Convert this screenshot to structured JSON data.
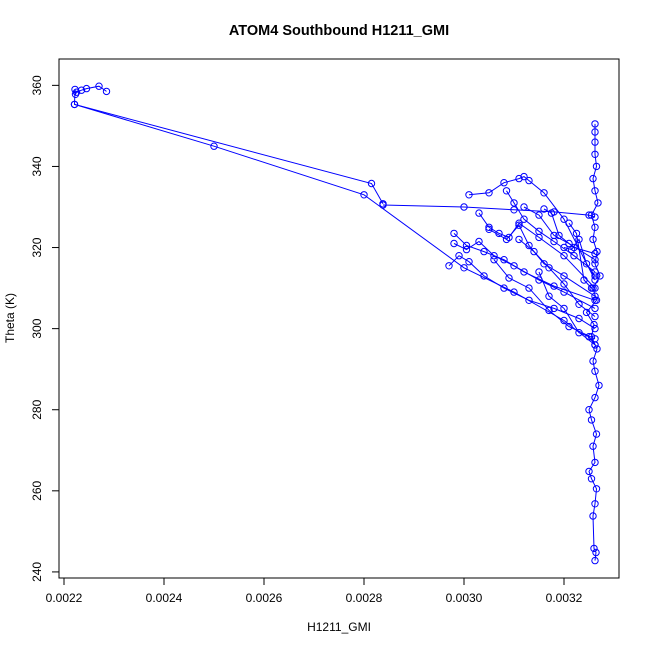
{
  "chart_data": {
    "type": "line",
    "title": "ATOM4 Southbound H1211_GMI",
    "xlabel": "H1211_GMI",
    "ylabel": "Theta (K)",
    "xlim": [
      0.00219,
      0.00331
    ],
    "ylim": [
      238.5,
      366.5
    ],
    "x_ticks": [
      0.0022,
      0.0024,
      0.0026,
      0.0028,
      0.003,
      0.0032
    ],
    "x_tick_labels": [
      "0.0022",
      "0.0024",
      "0.0026",
      "0.0028",
      "0.0030",
      "0.0032"
    ],
    "y_ticks": [
      240,
      260,
      280,
      300,
      320,
      340,
      360
    ],
    "y_tick_labels": [
      "240",
      "260",
      "280",
      "300",
      "320",
      "340",
      "360"
    ],
    "grid": false,
    "legend": "none",
    "markers": "open-circle",
    "colors": {
      "series": "#0000ff",
      "axis": "#000000",
      "background": "#ffffff"
    },
    "series": [
      {
        "x": [
          0.002285,
          0.00227,
          0.002245,
          0.002235,
          0.002225,
          0.002223,
          0.002222,
          0.002221,
          0.002815,
          0.002838
        ],
        "y": [
          358.5,
          359.8,
          359.2,
          358.8,
          358.3,
          357.8,
          359.0,
          355.3,
          335.8,
          330.8
        ]
      },
      {
        "x": [
          0.003262,
          0.003264,
          0.00326,
          0.003258,
          0.003262,
          0.003265,
          0.003255,
          0.00325,
          0.003262,
          0.003258,
          0.003265,
          0.003255,
          0.00325,
          0.003262,
          0.00327,
          0.003262,
          0.003258,
          0.003266,
          0.003255,
          0.00326,
          0.003245,
          0.003265,
          0.003258,
          0.003272,
          0.003262,
          0.003266,
          0.003258,
          0.003262,
          0.003255,
          0.003268,
          0.003262,
          0.003258,
          0.003265,
          0.003262,
          0.003262,
          0.003262,
          0.003262
        ],
        "y": [
          242.8,
          244.8,
          245.8,
          253.8,
          256.8,
          260.5,
          263.0,
          264.8,
          267.0,
          271.0,
          274.0,
          277.5,
          280.0,
          283.0,
          286.0,
          289.5,
          292.0,
          295.0,
          298.0,
          301.0,
          304.0,
          307.0,
          310.0,
          313.0,
          316.0,
          319.0,
          322.0,
          325.0,
          328.0,
          331.0,
          334.0,
          337.0,
          340.0,
          343.0,
          346.0,
          348.5,
          350.5
        ]
      },
      {
        "x": [
          0.002838,
          0.003,
          0.0031,
          0.00318,
          0.00325,
          0.003262
        ],
        "y": [
          330.5,
          330.0,
          329.3,
          328.8,
          328.0,
          327.5
        ]
      },
      {
        "x": [
          0.002221,
          0.0025,
          0.0028,
          0.003,
          0.0031,
          0.0032,
          0.003262
        ],
        "y": [
          355.3,
          345.0,
          333.0,
          315.0,
          309.0,
          302.0,
          296.0
        ]
      },
      {
        "x": [
          0.00297,
          0.00299,
          0.00301,
          0.00304,
          0.00308,
          0.00313,
          0.00318,
          0.00323,
          0.003262
        ],
        "y": [
          315.5,
          318.0,
          316.5,
          313.0,
          310.0,
          307.0,
          305.0,
          302.5,
          300.0
        ]
      },
      {
        "x": [
          0.00298,
          0.003005,
          0.00303,
          0.00306,
          0.0031,
          0.00315,
          0.0032,
          0.003262
        ],
        "y": [
          321.0,
          319.5,
          321.5,
          318.0,
          315.5,
          312.0,
          309.0,
          305.0
        ]
      },
      {
        "x": [
          0.00298,
          0.003005,
          0.00304,
          0.00308,
          0.00312,
          0.00318,
          0.003262
        ],
        "y": [
          323.5,
          320.5,
          319.0,
          317.0,
          314.0,
          310.5,
          307.0
        ]
      },
      {
        "x": [
          0.00301,
          0.00305,
          0.00308,
          0.00311,
          0.00312,
          0.00313,
          0.00316,
          0.0032,
          0.003262
        ],
        "y": [
          333.0,
          333.5,
          336.0,
          337.0,
          337.5,
          336.5,
          333.5,
          327.0,
          312.0
        ]
      },
      {
        "x": [
          0.00303,
          0.00305,
          0.00307,
          0.00309,
          0.00311,
          0.00315,
          0.0032,
          0.003262
        ],
        "y": [
          328.5,
          325.0,
          323.5,
          322.5,
          326.0,
          322.5,
          318.0,
          310.0
        ]
      },
      {
        "x": [
          0.003085,
          0.0031,
          0.00312,
          0.00315,
          0.00318,
          0.00322,
          0.003262
        ],
        "y": [
          334.0,
          331.0,
          327.0,
          324.0,
          321.5,
          318.0,
          314.0
        ]
      },
      {
        "x": [
          0.00305,
          0.003085,
          0.00311,
          0.00313,
          0.00316,
          0.0032,
          0.003262
        ],
        "y": [
          324.5,
          322.0,
          325.5,
          320.5,
          316.0,
          313.0,
          308.0
        ]
      },
      {
        "x": [
          0.00312,
          0.00315,
          0.00318,
          0.00321,
          0.003262
        ],
        "y": [
          330.0,
          328.0,
          323.0,
          321.0,
          317.0
        ]
      },
      {
        "x": [
          0.00316,
          0.003175,
          0.00319,
          0.00322,
          0.003262
        ],
        "y": [
          329.5,
          328.5,
          323.0,
          320.0,
          318.5
        ]
      },
      {
        "x": [
          0.0032,
          0.003215,
          0.00323,
          0.003245,
          0.003262
        ],
        "y": [
          320.0,
          319.5,
          322.0,
          316.0,
          313.0
        ]
      },
      {
        "x": [
          0.00311,
          0.00314,
          0.00317,
          0.0032,
          0.00323,
          0.003262
        ],
        "y": [
          322.0,
          319.0,
          315.0,
          311.0,
          306.0,
          303.0
        ]
      },
      {
        "x": [
          0.00306,
          0.00309,
          0.00313,
          0.00317,
          0.00321,
          0.003262
        ],
        "y": [
          317.0,
          312.5,
          310.0,
          304.5,
          300.5,
          297.5
        ]
      },
      {
        "x": [
          0.00315,
          0.00317,
          0.0032,
          0.00323,
          0.00325,
          0.003262
        ],
        "y": [
          314.0,
          308.0,
          305.0,
          299.0,
          298.0,
          296.0
        ]
      },
      {
        "x": [
          0.00321,
          0.003225,
          0.00324,
          0.003255
        ],
        "y": [
          326.0,
          323.5,
          312.0,
          310.0
        ]
      }
    ]
  }
}
